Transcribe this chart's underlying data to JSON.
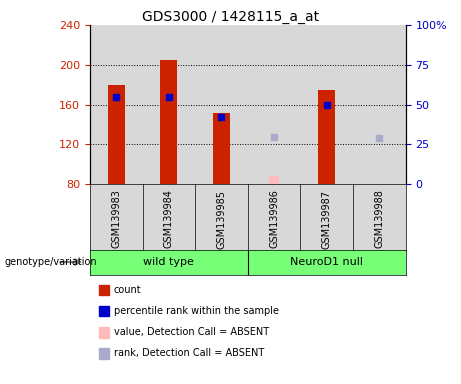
{
  "title": "GDS3000 / 1428115_a_at",
  "samples": [
    "GSM139983",
    "GSM139984",
    "GSM139985",
    "GSM139986",
    "GSM139987",
    "GSM139988"
  ],
  "ymin": 80,
  "ymax": 240,
  "yticks_left": [
    80,
    120,
    160,
    200,
    240
  ],
  "right_ticks_pos": [
    80,
    120,
    160,
    200,
    240
  ],
  "right_ticks_labels": [
    "0",
    "25",
    "50",
    "75",
    "100%"
  ],
  "count_values": [
    180,
    205,
    152,
    null,
    175,
    null
  ],
  "rank_values": [
    168,
    168,
    148,
    null,
    160,
    null
  ],
  "absent_value": [
    null,
    null,
    null,
    88,
    null,
    null
  ],
  "absent_rank": [
    null,
    null,
    null,
    128,
    null,
    127
  ],
  "bar_color": "#cc2200",
  "rank_color": "#0000cc",
  "absent_value_color": "#ffbbbb",
  "absent_rank_color": "#aaaacc",
  "left_axis_color": "#cc2200",
  "right_axis_color": "#0000cc",
  "col_bg_color": "#d8d8d8",
  "plot_bg": "#ffffff",
  "group_label": "genotype/variation",
  "group1_name": "wild type",
  "group2_name": "NeuroD1 null",
  "group_color": "#77ff77",
  "legend_items": [
    {
      "label": "count",
      "color": "#cc2200"
    },
    {
      "label": "percentile rank within the sample",
      "color": "#0000cc"
    },
    {
      "label": "value, Detection Call = ABSENT",
      "color": "#ffbbbb"
    },
    {
      "label": "rank, Detection Call = ABSENT",
      "color": "#aaaacc"
    }
  ]
}
